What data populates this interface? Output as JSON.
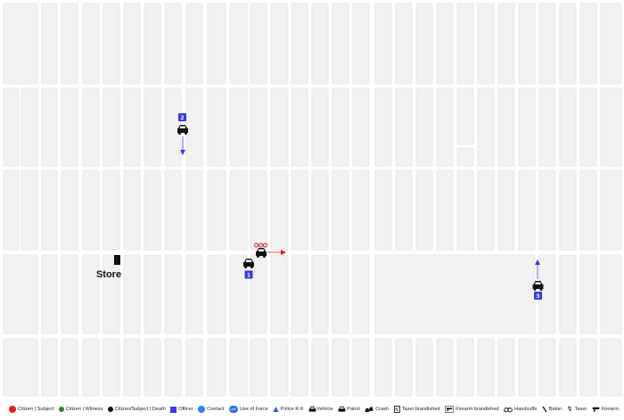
{
  "map": {
    "landmark_label": "Store",
    "officer_badges": [
      "2",
      "1",
      "3"
    ],
    "colors": {
      "background": "#f2f2f2",
      "street": "#ffffff",
      "officer": "#3a3ae0",
      "citizen_subject": "#e02020",
      "citizen_witness": "#2a8a2a",
      "citizen_death": "#111111",
      "contact": "#3b7cf0",
      "use_of_force": "#2f6fe0"
    },
    "icons": [
      "patrol-car-icon",
      "movement-arrow-icon",
      "store-marker-icon",
      "officer-badge-icon"
    ]
  },
  "legend": {
    "items": [
      {
        "label": "Citizen | Subject",
        "icon": "red-dot-icon"
      },
      {
        "label": "Citizen | Witness",
        "icon": "green-dot-icon"
      },
      {
        "label": "Citizen/Subject | Death",
        "icon": "black-dot-icon"
      },
      {
        "label": "Officer",
        "icon": "blue-square-icon"
      },
      {
        "label": "Contact",
        "icon": "contact-icon"
      },
      {
        "label": "Use of Force",
        "icon": "use-of-force-icon",
        "badge_text": "UoF"
      },
      {
        "label": "Police K-9",
        "icon": "k9-icon"
      },
      {
        "label": "Vehicle",
        "icon": "vehicle-icon"
      },
      {
        "label": "Patrol",
        "icon": "patrol-icon"
      },
      {
        "label": "Crash",
        "icon": "crash-icon"
      },
      {
        "label": "Taser brandished",
        "icon": "taser-brandished-icon"
      },
      {
        "label": "Firearm brandished",
        "icon": "firearm-brandished-icon"
      },
      {
        "label": "Handcuffs",
        "icon": "handcuffs-icon"
      },
      {
        "label": "Baton",
        "icon": "baton-icon"
      },
      {
        "label": "Taser",
        "icon": "taser-icon"
      },
      {
        "label": "Firearm",
        "icon": "firearm-icon"
      }
    ]
  }
}
